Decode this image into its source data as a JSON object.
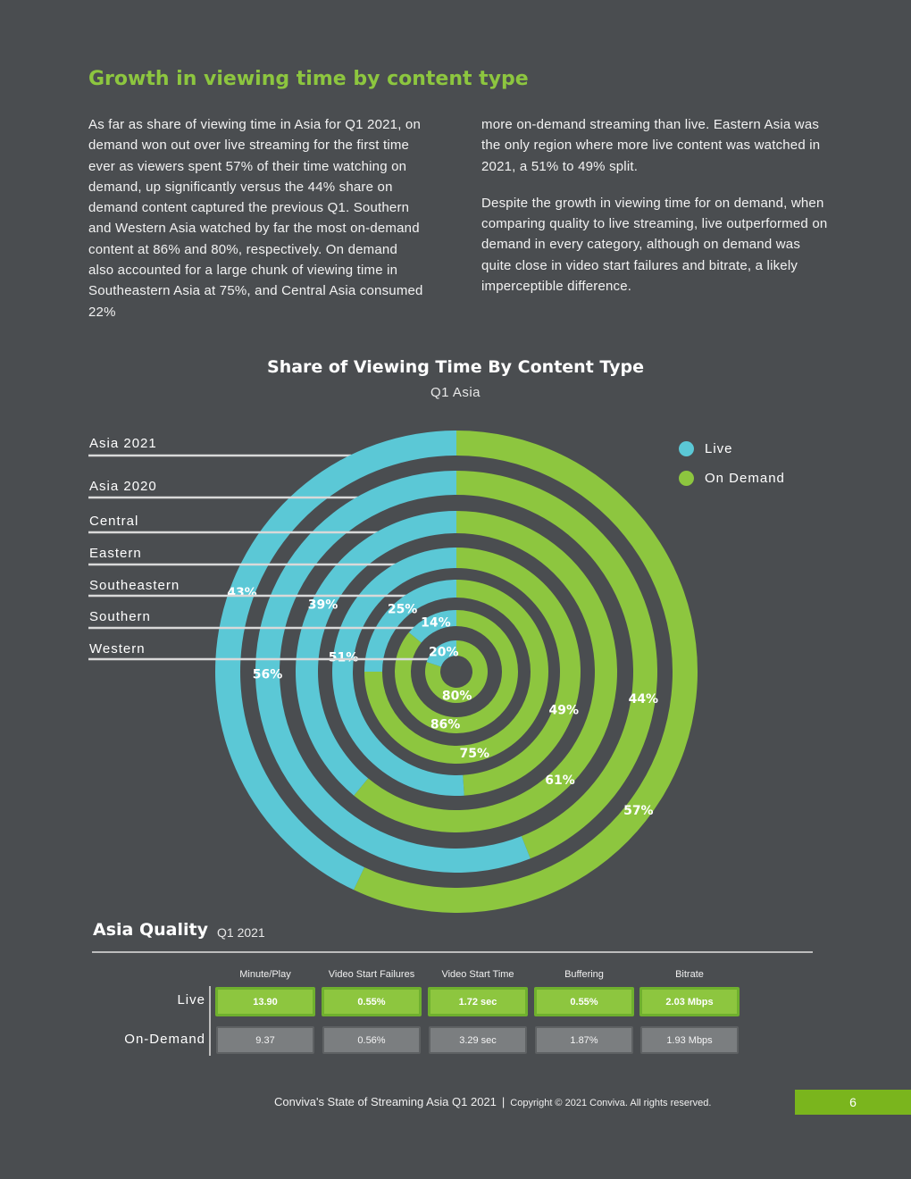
{
  "article": {
    "title": "Growth in viewing time by content type",
    "paragraph1": "As far as share of viewing time in Asia for Q1 2021, on demand won out over live streaming for the first time ever as viewers spent 57% of their time watching on demand, up significantly versus the 44% share on demand content captured the previous Q1. Southern and Western Asia watched by far the most on-demand content at 86% and 80%, respectively. On demand also accounted for a large chunk of viewing time in Southeastern Asia at 75%, and Central Asia consumed 22% more on-demand streaming than live. Eastern Asia was the only region where more live content was watched in 2021, a 51% to 49% split.",
    "paragraph2": "Despite the growth in viewing time for on demand, when comparing quality to live streaming, live outperformed on demand in every category, although on demand was quite close in video start failures and bitrate, a likely imperceptible difference."
  },
  "chart_data": {
    "type": "donut",
    "title": "Share of Viewing Time By Content Type",
    "subtitle": "Q1 Asia",
    "legend": [
      {
        "name": "Live",
        "color": "#5bc8d6"
      },
      {
        "name": "On Demand",
        "color": "#8dc63f"
      }
    ],
    "legend_position": "top-right",
    "rings": [
      {
        "name": "Asia 2021",
        "live": 43,
        "on_demand": 57,
        "live_label": "43%",
        "on_demand_label": "57%"
      },
      {
        "name": "Asia 2020",
        "live": 56,
        "on_demand": 44,
        "live_label": "56%",
        "on_demand_label": "44%"
      },
      {
        "name": "Central",
        "live": 39,
        "on_demand": 61,
        "live_label": "39%",
        "on_demand_label": "61%"
      },
      {
        "name": "Eastern",
        "live": 51,
        "on_demand": 49,
        "live_label": "51%",
        "on_demand_label": "49%"
      },
      {
        "name": "Southeastern",
        "live": 25,
        "on_demand": 75,
        "live_label": "25%",
        "on_demand_label": "75%"
      },
      {
        "name": "Southern",
        "live": 14,
        "on_demand": 86,
        "live_label": "14%",
        "on_demand_label": "86%"
      },
      {
        "name": "Western",
        "live": 20,
        "on_demand": 80,
        "live_label": "20%",
        "on_demand_label": "80%"
      }
    ]
  },
  "quality": {
    "title": "Asia Quality",
    "subtitle": "Q1 2021",
    "columns": [
      "Minute/Play",
      "Video Start Failures",
      "Video Start Time",
      "Buffering",
      "Bitrate"
    ],
    "rows": [
      {
        "label": "Live",
        "values": [
          "13.90",
          "0.55%",
          "1.72 sec",
          "0.55%",
          "2.03 Mbps"
        ]
      },
      {
        "label": "On-Demand",
        "values": [
          "9.37",
          "0.56%",
          "3.29 sec",
          "1.87%",
          "1.93 Mbps"
        ]
      }
    ]
  },
  "footer": {
    "report": "Conviva's State of Streaming Asia Q1 2021",
    "separator": "|",
    "copyright": "Copyright © 2021 Conviva. All rights reserved.",
    "page": "6"
  }
}
